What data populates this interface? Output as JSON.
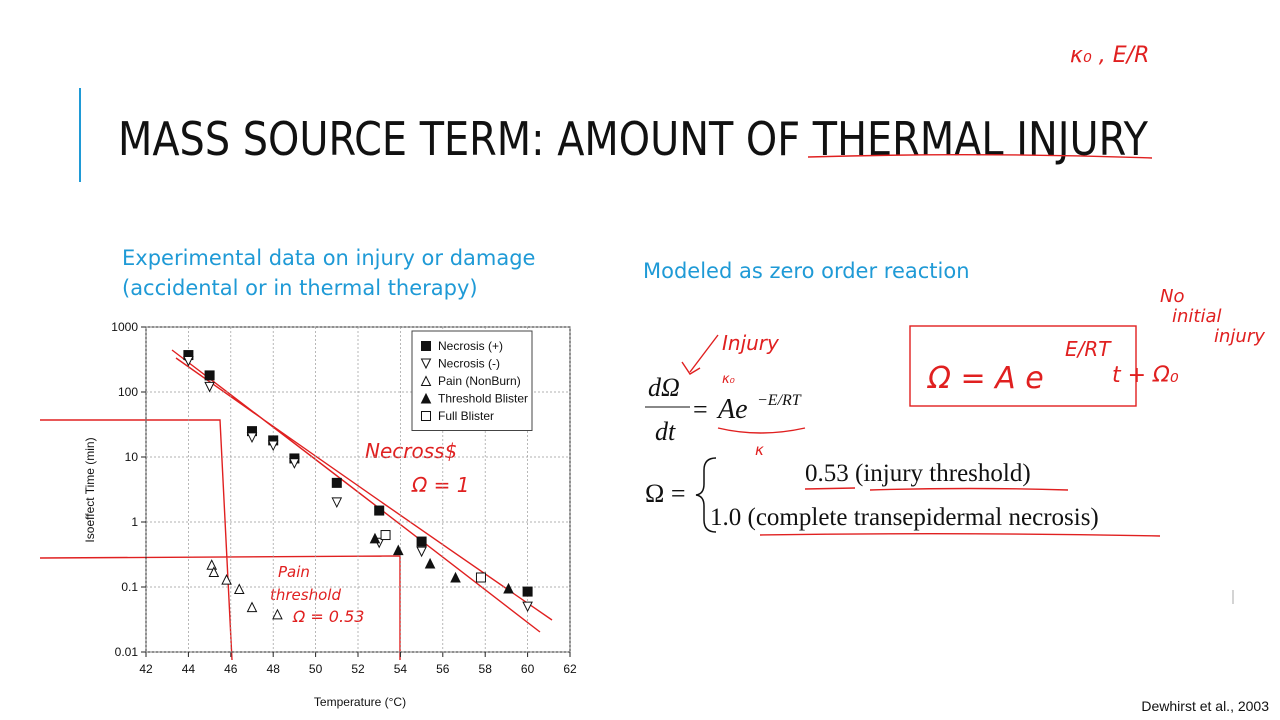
{
  "slide": {
    "title": "MASS SOURCE TERM: AMOUNT OF THERMAL INJURY",
    "left_text": [
      "Experimental data on injury or damage",
      "(accidental or in thermal therapy)"
    ],
    "right_text": "Modeled as zero order reaction",
    "rate_equation": {
      "numerator": "dΩ",
      "denominator": "dt",
      "equals": "=",
      "rhs": "Ae",
      "exponent": "−E/RT"
    },
    "omega_definition": {
      "lhs": "Ω =",
      "cases": [
        "0.53 (injury  threshold)",
        "1.0 (complete transepidermal necrosis)"
      ]
    },
    "citation": "Dewhirst et al., 2003",
    "handwritten": {
      "top_right": "κ₀ , E/R",
      "necrosis": "Necross$",
      "necrosis_omega": "Ω = 1",
      "pain": [
        "Pain",
        "threshold",
        "Ω = 0.53"
      ],
      "injury": "Injury",
      "k0": "κ₀",
      "k": "κ",
      "no_initial": [
        "No",
        "initial",
        "injury"
      ],
      "box_lhs": "Ω = A e",
      "box_exp": "E/RT",
      "box_rhs": "t + Ω₀"
    }
  },
  "chart_data": {
    "type": "scatter",
    "x_label": "Temperature (°C)",
    "y_label": "Isoeffect Time (min)",
    "xlim": [
      42,
      62
    ],
    "xticks": [
      42,
      44,
      46,
      48,
      50,
      52,
      54,
      56,
      58,
      60,
      62
    ],
    "ylim": [
      0.01,
      1000
    ],
    "yticks": [
      0.01,
      0.1,
      1,
      10,
      100,
      1000
    ],
    "log_y": true,
    "grid": true,
    "legend": "upper right",
    "series": [
      {
        "name": "Necrosis (+)",
        "marker": "square-filled",
        "color": "#111111",
        "x": [
          44,
          45,
          47,
          48,
          49,
          51,
          53,
          55,
          60
        ],
        "values": [
          370,
          180,
          25,
          18,
          9.5,
          4,
          1.5,
          0.5,
          0.085
        ]
      },
      {
        "name": "Necrosis (-)",
        "marker": "triangle-down-open",
        "color": "#111111",
        "x": [
          44,
          45,
          47,
          48,
          49,
          51,
          53,
          55,
          60
        ],
        "values": [
          300,
          120,
          20,
          15,
          8,
          2,
          0.48,
          0.35,
          0.05
        ]
      },
      {
        "name": "Pain (NonBurn)",
        "marker": "triangle-up-open",
        "color": "#111111",
        "x": [
          45.1,
          45.2,
          45.8,
          46.4,
          47,
          48.2
        ],
        "values": [
          0.22,
          0.17,
          0.13,
          0.093,
          0.049,
          0.038
        ]
      },
      {
        "name": "Threshold Blister",
        "marker": "triangle-up-filled",
        "color": "#111111",
        "x": [
          52.8,
          53.9,
          55.4,
          56.6,
          59.1
        ],
        "values": [
          0.56,
          0.37,
          0.23,
          0.14,
          0.095
        ]
      },
      {
        "name": "Full Blister",
        "marker": "square-open",
        "color": "#111111",
        "x": [
          53.3,
          57.8
        ],
        "values": [
          0.63,
          0.14
        ]
      }
    ]
  }
}
